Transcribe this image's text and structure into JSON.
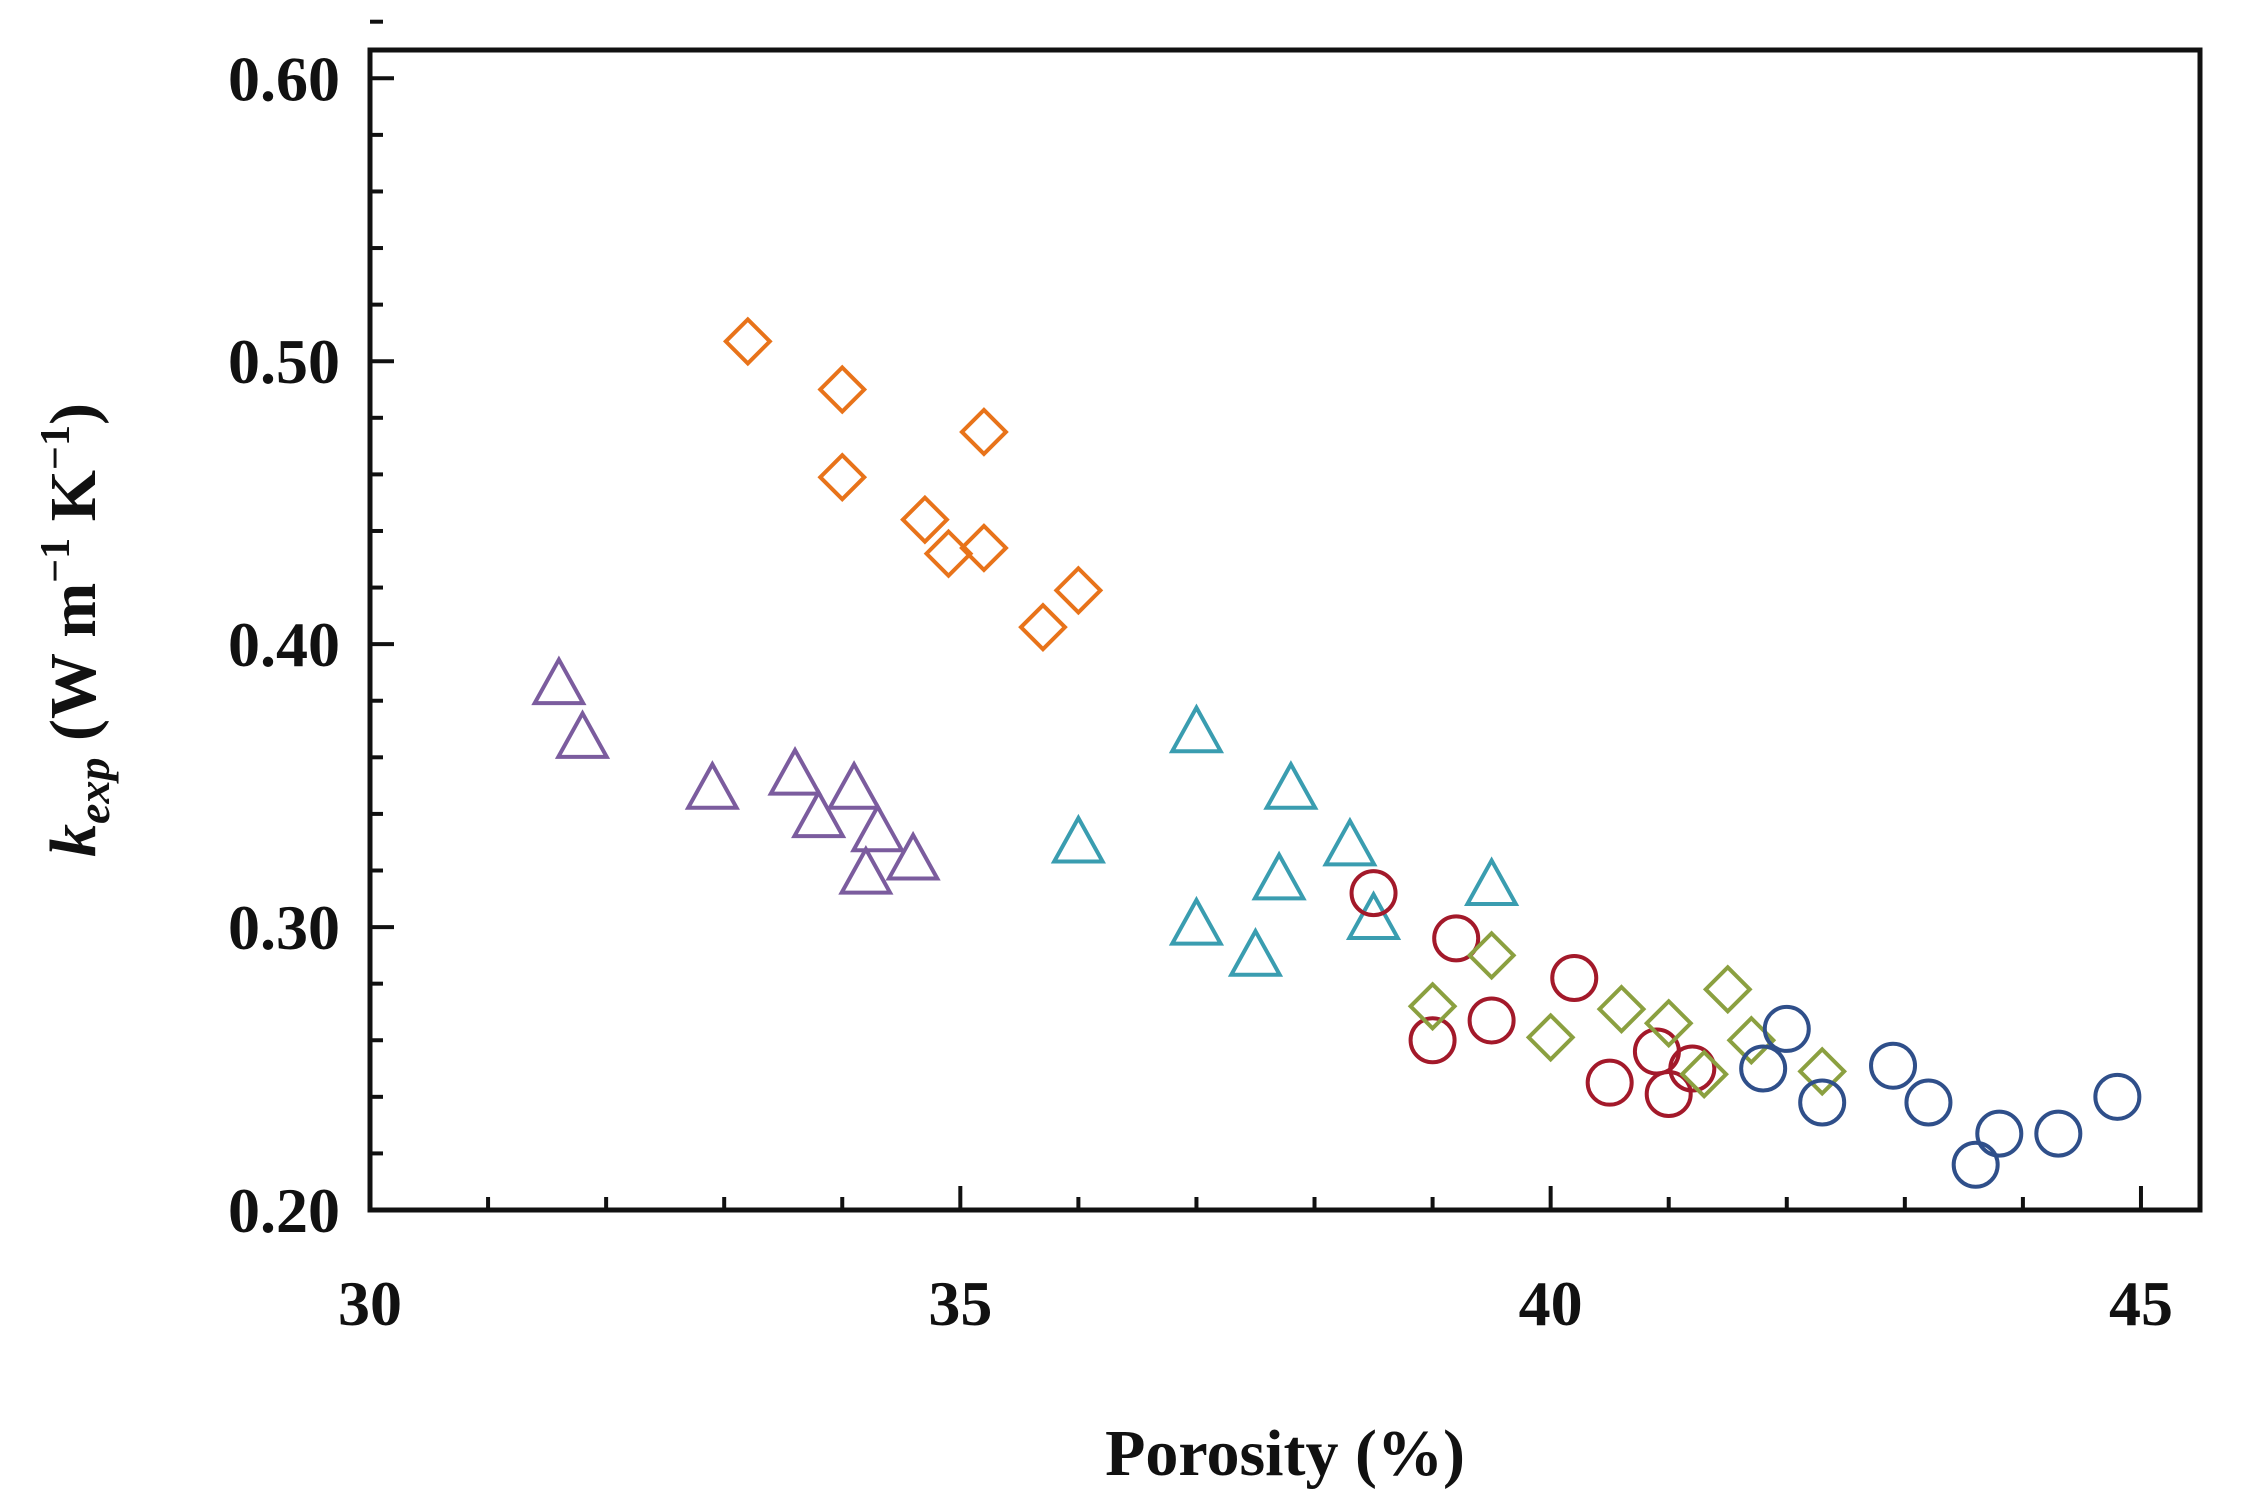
{
  "chart_data": {
    "type": "scatter",
    "title": "",
    "xlabel": "Porosity (%)",
    "ylabel": {
      "symbol": "k",
      "subscript": "exp",
      "unit_prefix": " (W m",
      "unit_exp1": "−1",
      "unit_mid": " K",
      "unit_exp2": "−1",
      "unit_suffix": ")"
    },
    "xlim": [
      30,
      45.5
    ],
    "ylim": [
      0.2,
      0.61
    ],
    "xticks": [
      30,
      35,
      40,
      45
    ],
    "xtick_labels": [
      "30",
      "35",
      "40",
      "45"
    ],
    "yticks": [
      0.2,
      0.3,
      0.4,
      0.5,
      0.6
    ],
    "ytick_labels": [
      "0.20",
      "0.30",
      "0.40",
      "0.50",
      "0.60"
    ],
    "x_minor_step": 1,
    "y_minor_step": 0.02,
    "grid": false,
    "legend": "none",
    "series": [
      {
        "name": "orange-diamonds",
        "marker": "diamond",
        "color": "#E8731A",
        "points": [
          [
            33.2,
            0.507
          ],
          [
            34.0,
            0.49
          ],
          [
            35.2,
            0.475
          ],
          [
            34.0,
            0.459
          ],
          [
            34.7,
            0.444
          ],
          [
            34.9,
            0.432
          ],
          [
            35.2,
            0.434
          ],
          [
            36.0,
            0.419
          ],
          [
            35.7,
            0.406
          ]
        ]
      },
      {
        "name": "purple-triangles",
        "marker": "triangle",
        "color": "#7B5C9E",
        "points": [
          [
            31.6,
            0.386
          ],
          [
            31.8,
            0.367
          ],
          [
            32.9,
            0.349
          ],
          [
            33.6,
            0.354
          ],
          [
            34.1,
            0.349
          ],
          [
            33.8,
            0.339
          ],
          [
            34.3,
            0.334
          ],
          [
            34.6,
            0.324
          ],
          [
            34.2,
            0.319
          ]
        ]
      },
      {
        "name": "teal-triangles",
        "marker": "triangle",
        "color": "#3A9DB0",
        "points": [
          [
            37.0,
            0.369
          ],
          [
            37.8,
            0.349
          ],
          [
            36.0,
            0.33
          ],
          [
            38.3,
            0.329
          ],
          [
            37.7,
            0.317
          ],
          [
            39.5,
            0.315
          ],
          [
            37.0,
            0.301
          ],
          [
            38.5,
            0.303
          ],
          [
            37.5,
            0.29
          ]
        ]
      },
      {
        "name": "red-circles",
        "marker": "circle",
        "color": "#A3192A",
        "points": [
          [
            38.5,
            0.312
          ],
          [
            39.2,
            0.296
          ],
          [
            40.2,
            0.282
          ],
          [
            39.0,
            0.26
          ],
          [
            39.5,
            0.267
          ],
          [
            40.9,
            0.256
          ],
          [
            41.2,
            0.25
          ],
          [
            40.5,
            0.245
          ],
          [
            41.0,
            0.241
          ]
        ]
      },
      {
        "name": "olive-diamonds",
        "marker": "diamond",
        "color": "#8BA040",
        "points": [
          [
            39.5,
            0.29
          ],
          [
            39.0,
            0.272
          ],
          [
            40.6,
            0.271
          ],
          [
            41.5,
            0.278
          ],
          [
            41.0,
            0.266
          ],
          [
            40.0,
            0.261
          ],
          [
            41.7,
            0.26
          ],
          [
            41.3,
            0.248
          ],
          [
            42.3,
            0.249
          ]
        ]
      },
      {
        "name": "blue-circles",
        "marker": "circle",
        "color": "#2F4F8A",
        "points": [
          [
            42.0,
            0.264
          ],
          [
            41.8,
            0.25
          ],
          [
            42.9,
            0.251
          ],
          [
            42.3,
            0.238
          ],
          [
            43.2,
            0.238
          ],
          [
            44.8,
            0.24
          ],
          [
            43.8,
            0.227
          ],
          [
            44.3,
            0.227
          ],
          [
            43.6,
            0.216
          ]
        ]
      }
    ]
  }
}
